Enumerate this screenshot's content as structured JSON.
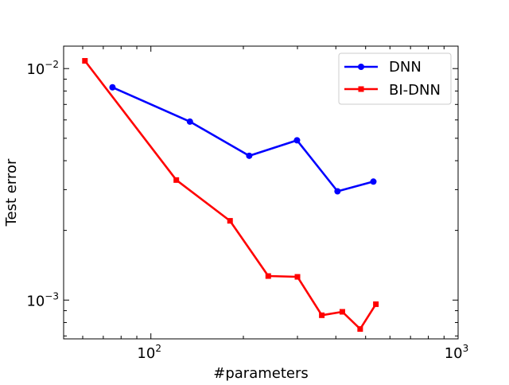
{
  "chart_data": {
    "type": "line",
    "xscale": "log",
    "yscale": "log",
    "xlabel": "#parameters",
    "ylabel": "Test error",
    "xlim": [
      52,
      1000
    ],
    "ylim": [
      0.00068,
      0.0125
    ],
    "x_ticks": [
      {
        "value": 100,
        "base": "10",
        "exp": "2"
      },
      {
        "value": 1000,
        "base": "10",
        "exp": "3"
      }
    ],
    "y_ticks": [
      {
        "value": 0.001,
        "base": "10",
        "exp": "−3"
      },
      {
        "value": 0.01,
        "base": "10",
        "exp": "−2"
      }
    ],
    "grid": false,
    "legend_position": "top-right",
    "series": [
      {
        "name": "DNN",
        "color": "#0000ff",
        "marker": "circle",
        "x": [
          75,
          134,
          209,
          299,
          405,
          530
        ],
        "y": [
          0.0083,
          0.0059,
          0.0042,
          0.0049,
          0.00295,
          0.00325
        ]
      },
      {
        "name": "BI-DNN",
        "color": "#ff0000",
        "marker": "square",
        "x": [
          61,
          121,
          181,
          241,
          300,
          360,
          420,
          480,
          540
        ],
        "y": [
          0.0108,
          0.0033,
          0.0022,
          0.00127,
          0.00126,
          0.00086,
          0.00089,
          0.00075,
          0.00096
        ]
      }
    ]
  }
}
